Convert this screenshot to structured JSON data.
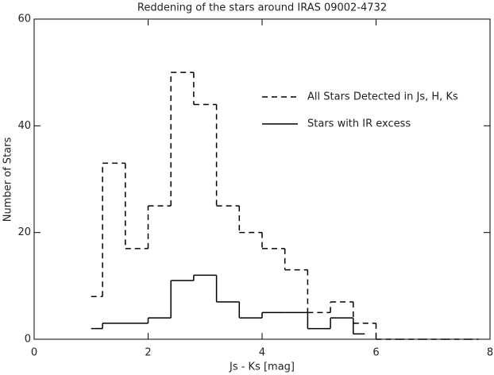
{
  "chart_data": {
    "type": "step",
    "title": "Reddening of the stars around IRAS 09002-4732",
    "xlabel": "Js - Ks [mag]",
    "ylabel": "Number of Stars",
    "x": [
      1.0,
      1.4,
      1.8,
      2.2,
      2.6,
      3.0,
      3.4,
      3.8,
      4.2,
      4.6,
      5.0,
      5.4,
      5.8,
      6.2,
      6.6,
      7.0,
      7.4,
      7.8
    ],
    "series": [
      {
        "name": "All Stars Detected in Js, H, Ks",
        "color": "#000000",
        "linestyle": "dashed",
        "values": [
          8,
          33,
          17,
          25,
          50,
          44,
          25,
          20,
          17,
          13,
          5,
          7,
          3,
          0,
          0,
          0,
          0,
          0
        ]
      },
      {
        "name": "Stars with IR excess",
        "color": "#000000",
        "linestyle": "solid",
        "values": [
          2,
          3,
          3,
          4,
          11,
          12,
          7,
          4,
          5,
          5,
          2,
          4,
          1,
          null,
          null,
          null,
          null,
          null
        ]
      }
    ],
    "xlim": [
      0,
      8
    ],
    "xticks": [
      0,
      2,
      4,
      6,
      8
    ],
    "ylim": [
      0,
      60
    ],
    "yticks": [
      0,
      20,
      40,
      60
    ],
    "legend": "upper right"
  }
}
